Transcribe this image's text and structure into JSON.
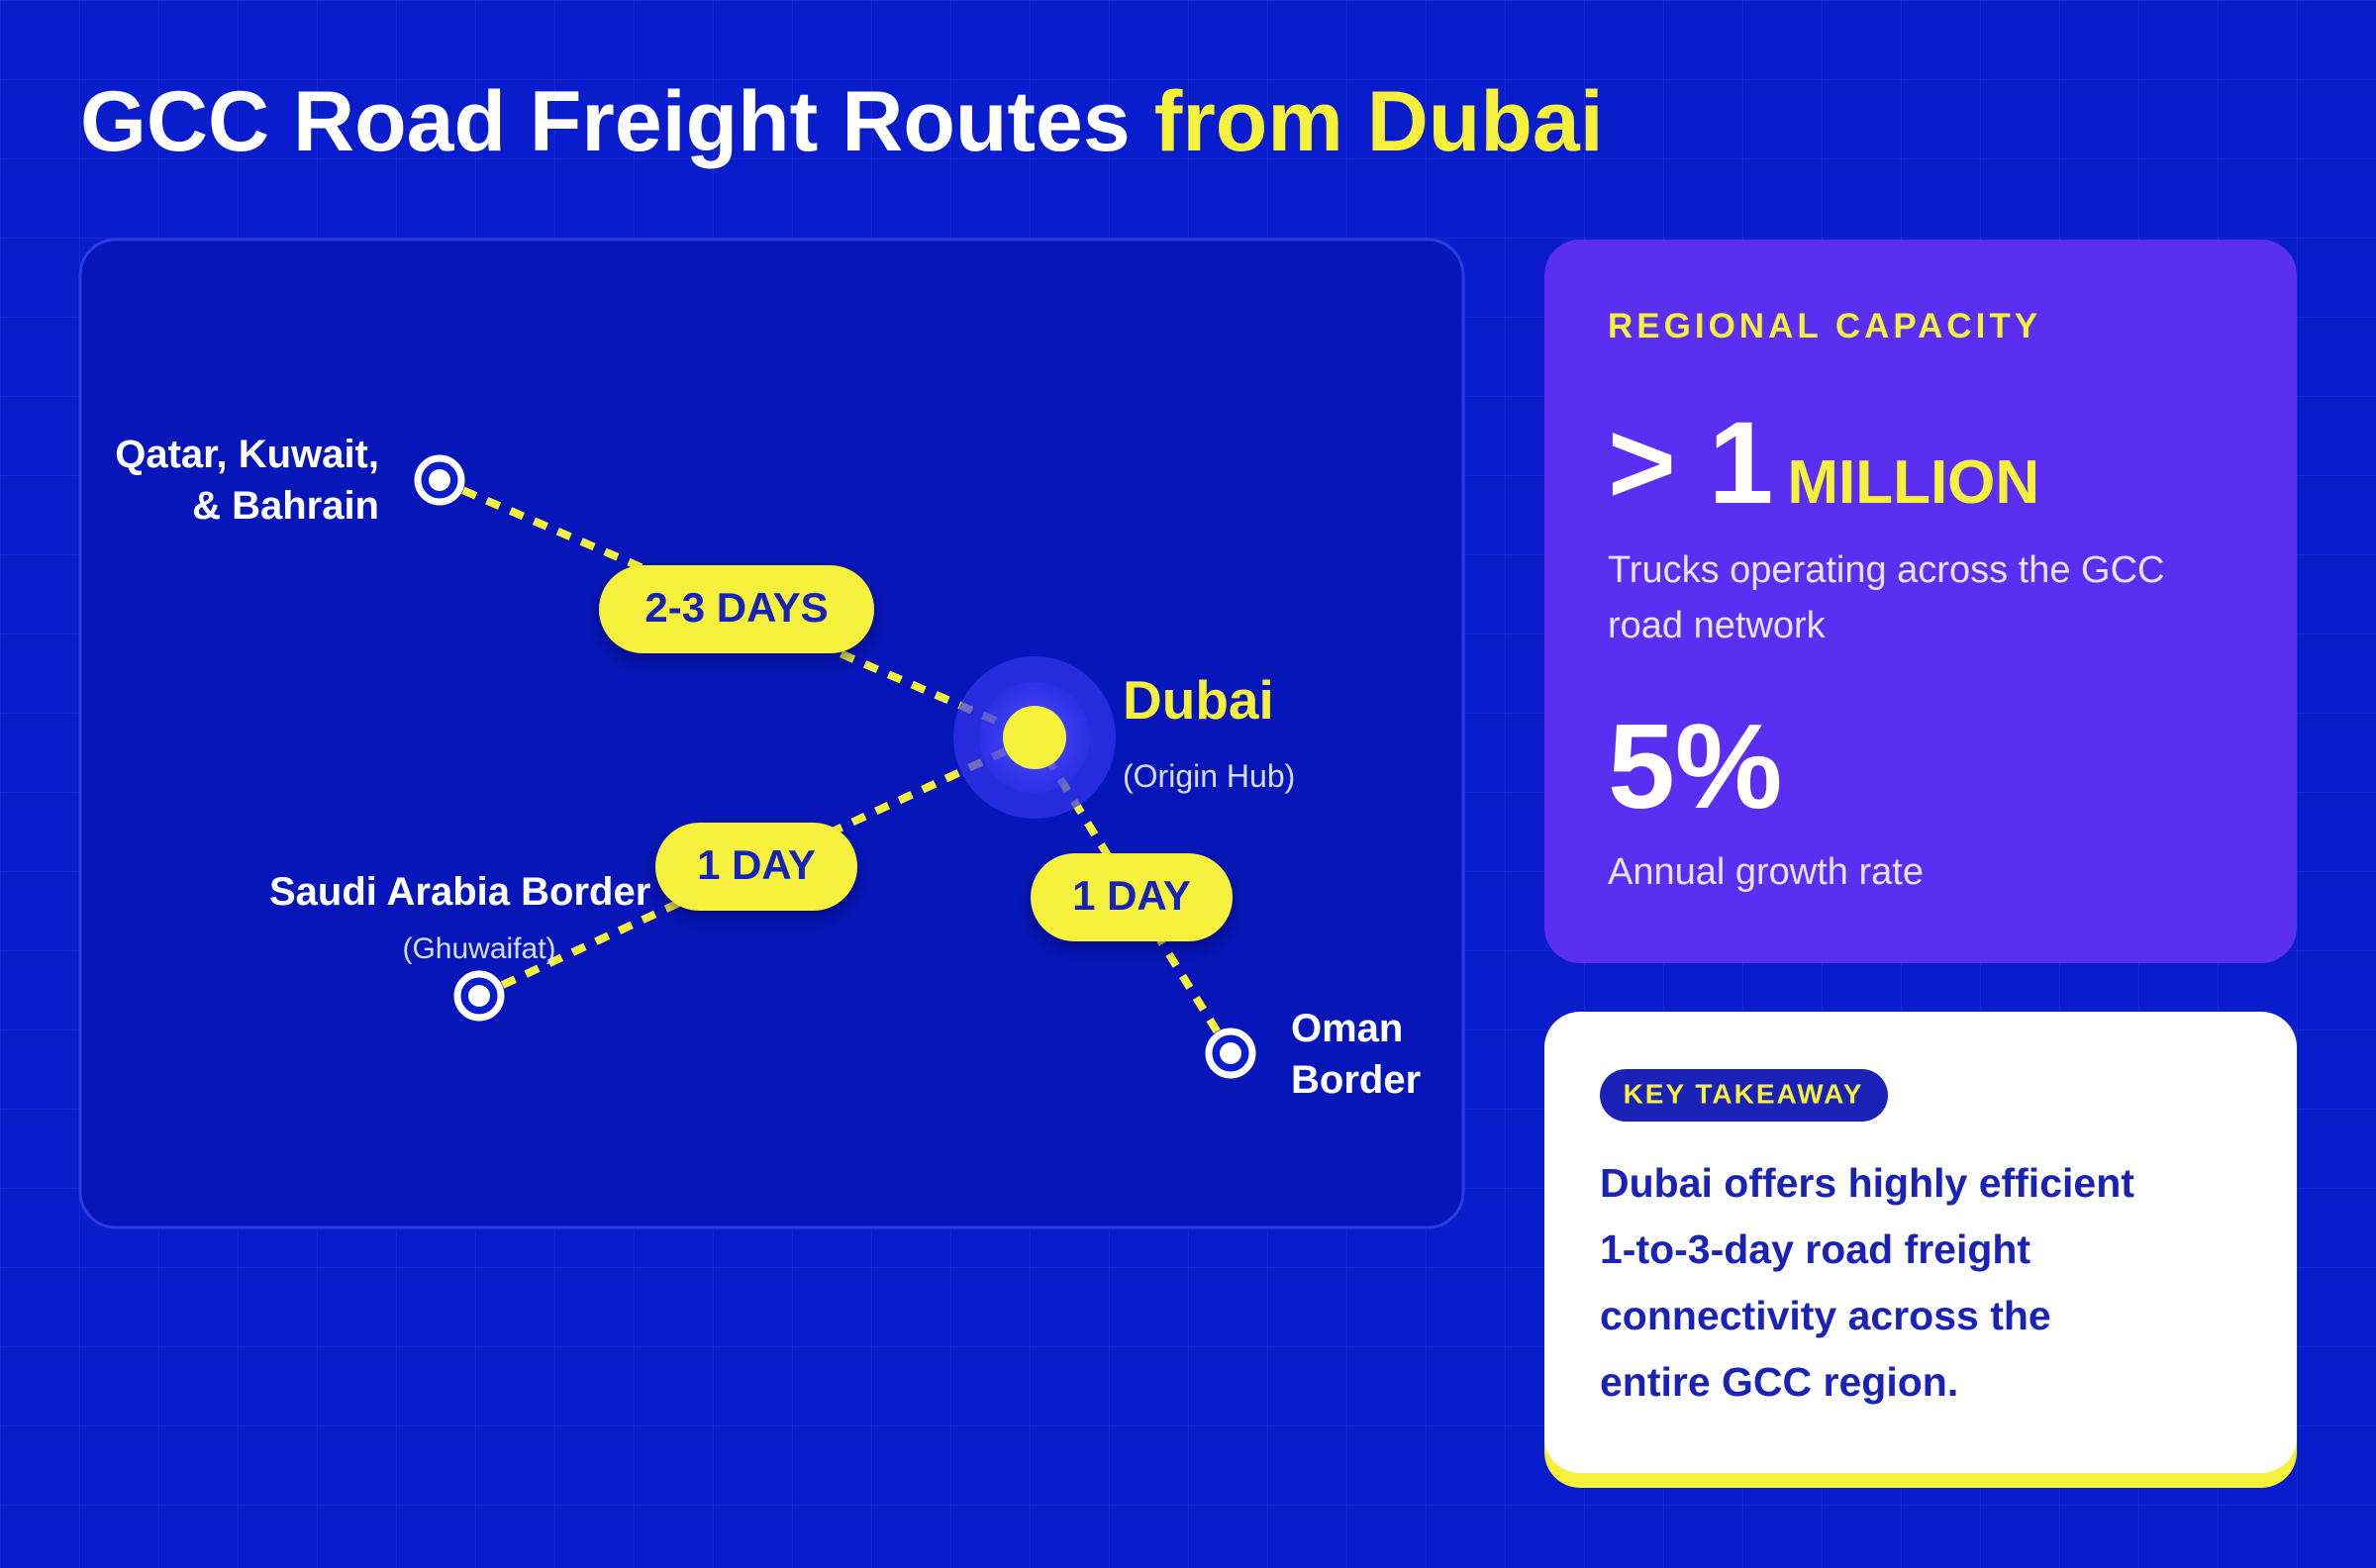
{
  "title": {
    "main": "GCC Road Freight Routes",
    "highlight": "from Dubai"
  },
  "map": {
    "hub": {
      "name": "Dubai",
      "note": "(Origin Hub)"
    },
    "destinations": [
      {
        "lines": [
          "Qatar, Kuwait,",
          "& Bahrain"
        ],
        "transit": "2-3 DAYS"
      },
      {
        "lines": [
          "Saudi Arabia Border"
        ],
        "note": "(Ghuwaifat)",
        "transit": "1 DAY"
      },
      {
        "lines": [
          "Oman",
          "Border"
        ],
        "transit": "1 DAY"
      }
    ]
  },
  "capacity": {
    "heading": "REGIONAL CAPACITY",
    "trucks": {
      "prefix": "> 1",
      "unit": "MILLION",
      "lines": [
        "Trucks operating across the GCC",
        "road network"
      ]
    },
    "growth": {
      "value": "5%",
      "label": "Annual growth rate"
    }
  },
  "takeaway": {
    "badge": "KEY TAKEAWAY",
    "lines": [
      "Dubai offers highly efficient",
      "1-to-3-day road freight",
      "connectivity across the",
      "entire GCC region."
    ]
  }
}
